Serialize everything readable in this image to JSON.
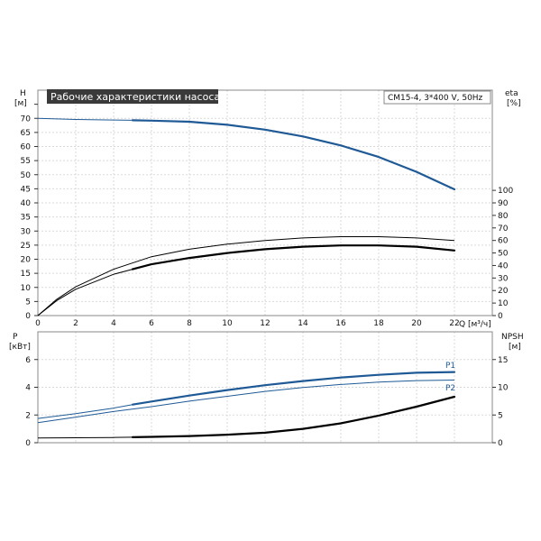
{
  "header": {
    "title": "Рабочие характеристики насоса",
    "model": "CM15-4, 3*400 V, 50Hz"
  },
  "labels": {
    "h": "H",
    "h_unit": "[м]",
    "eta": "eta",
    "eta_unit": "[%]",
    "q": "Q [м³/ч]",
    "p": "P",
    "p_unit": "[кВт]",
    "npsh": "NPSH",
    "npsh_unit": "[м]",
    "p1": "P1",
    "p2": "P2"
  },
  "colors": {
    "blue": "#1f5a96",
    "black": "#000000",
    "title_bg": "#3a3a3a"
  },
  "chart_data": [
    {
      "type": "line",
      "name": "top",
      "xlim": [
        0,
        24
      ],
      "ylim": [
        0,
        80
      ],
      "y2lim": [
        0,
        180
      ],
      "x_ticks": [
        0,
        2,
        4,
        6,
        8,
        10,
        12,
        14,
        16,
        18,
        20,
        22
      ],
      "y_ticks": [
        0,
        5,
        10,
        15,
        20,
        25,
        30,
        35,
        40,
        45,
        50,
        55,
        60,
        65,
        70
      ],
      "y2_ticks": [
        0,
        10,
        20,
        30,
        40,
        50,
        60,
        70,
        80,
        90,
        100
      ],
      "series": [
        {
          "key": "head",
          "axis": "left",
          "color": "#1f5a96",
          "x": [
            0,
            2,
            4,
            5,
            6,
            8,
            10,
            12,
            14,
            16,
            18,
            20,
            22
          ],
          "y": [
            70,
            69.6,
            69.4,
            69.3,
            69.2,
            68.8,
            67.7,
            66,
            63.6,
            60.4,
            56.3,
            51,
            44.8
          ],
          "bold_from": 5
        },
        {
          "key": "eta-upper",
          "axis": "right",
          "color": "#000000",
          "x": [
            0,
            1,
            2,
            4,
            6,
            8,
            10,
            12,
            14,
            16,
            18,
            20,
            22
          ],
          "y": [
            0,
            13,
            23,
            37,
            47,
            53,
            57,
            60,
            62,
            63,
            63,
            62,
            60
          ],
          "bold_from": 99
        },
        {
          "key": "eta-lower",
          "axis": "right",
          "color": "#000000",
          "x": [
            0,
            1,
            2,
            4,
            5,
            6,
            8,
            10,
            12,
            14,
            16,
            18,
            20,
            22
          ],
          "y": [
            0,
            12,
            21,
            33,
            37,
            41,
            46,
            50,
            53,
            55,
            56,
            56,
            55,
            52
          ],
          "bold_from": 5
        }
      ]
    },
    {
      "type": "line",
      "name": "bottom",
      "xlim": [
        0,
        24
      ],
      "ylim": [
        0,
        8
      ],
      "y2lim": [
        0,
        20
      ],
      "y_ticks": [
        0,
        2,
        4,
        6
      ],
      "y2_ticks": [
        0,
        5,
        10,
        15
      ],
      "series": [
        {
          "key": "p1",
          "axis": "left",
          "color": "#1f5a96",
          "x": [
            0,
            2,
            4,
            5,
            6,
            8,
            10,
            12,
            14,
            16,
            18,
            20,
            22
          ],
          "y": [
            1.75,
            2.1,
            2.5,
            2.75,
            2.97,
            3.4,
            3.8,
            4.15,
            4.45,
            4.7,
            4.9,
            5.05,
            5.1
          ],
          "bold_from": 5
        },
        {
          "key": "p2",
          "axis": "left",
          "color": "#1f5a96",
          "x": [
            0,
            2,
            4,
            6,
            8,
            10,
            12,
            14,
            16,
            18,
            20,
            22
          ],
          "y": [
            1.45,
            1.85,
            2.25,
            2.6,
            3.0,
            3.35,
            3.7,
            3.98,
            4.2,
            4.38,
            4.48,
            4.52
          ],
          "bold_from": 99
        },
        {
          "key": "npsh",
          "axis": "right",
          "color": "#000000",
          "x": [
            0,
            2,
            4,
            5,
            6,
            8,
            10,
            12,
            14,
            16,
            18,
            20,
            22
          ],
          "y": [
            0.85,
            0.9,
            0.95,
            1.0,
            1.05,
            1.2,
            1.45,
            1.8,
            2.5,
            3.5,
            4.9,
            6.5,
            8.3
          ],
          "bold_from": 5
        }
      ]
    }
  ]
}
